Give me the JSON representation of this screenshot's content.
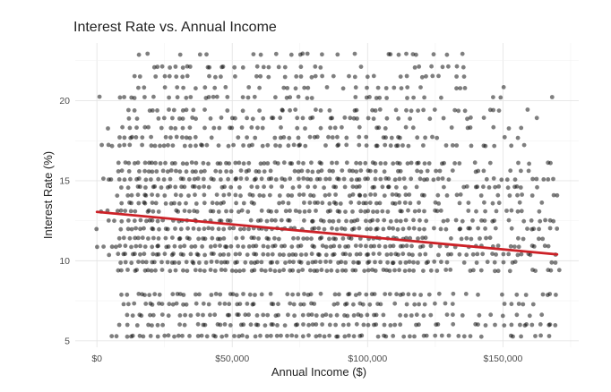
{
  "chart_data": {
    "type": "scatter",
    "title": "Interest Rate vs. Annual Income",
    "xlabel": "Annual Income ($)",
    "ylabel": "Interest Rate (%)",
    "xlim": [
      -8000,
      178000
    ],
    "ylim": [
      4.6,
      23.6
    ],
    "x_ticks": [
      {
        "value": 0,
        "label": "$0"
      },
      {
        "value": 50000,
        "label": "$50,000"
      },
      {
        "value": 100000,
        "label": "$100,000"
      },
      {
        "value": 150000,
        "label": "$150,000"
      }
    ],
    "y_ticks": [
      {
        "value": 5,
        "label": "5"
      },
      {
        "value": 10,
        "label": "10"
      },
      {
        "value": 15,
        "label": "15"
      },
      {
        "value": 20,
        "label": "20"
      }
    ],
    "grid": true,
    "legend": "none",
    "point_color": "#000000",
    "point_opacity": 0.5,
    "trend_color": "#cc2127",
    "trend_line": {
      "x": [
        0,
        170000
      ],
      "y": [
        13.05,
        10.4
      ]
    },
    "rate_levels": [
      {
        "rate": 5.3,
        "x_range": [
          5000,
          170000
        ],
        "density": 0.9
      },
      {
        "rate": 6.0,
        "x_range": [
          8000,
          170000
        ],
        "density": 0.85
      },
      {
        "rate": 6.6,
        "x_range": [
          8000,
          165000
        ],
        "density": 0.75
      },
      {
        "rate": 7.3,
        "x_range": [
          10000,
          165000
        ],
        "density": 0.75
      },
      {
        "rate": 7.9,
        "x_range": [
          2000,
          170000
        ],
        "density": 0.8
      },
      {
        "rate": 9.4,
        "x_range": [
          8000,
          170000
        ],
        "density": 0.95
      },
      {
        "rate": 9.9,
        "x_range": [
          4000,
          170000
        ],
        "density": 0.95
      },
      {
        "rate": 10.4,
        "x_range": [
          2000,
          170000
        ],
        "density": 0.95
      },
      {
        "rate": 10.9,
        "x_range": [
          0,
          170000
        ],
        "density": 0.95
      },
      {
        "rate": 11.4,
        "x_range": [
          8000,
          165000
        ],
        "density": 0.85
      },
      {
        "rate": 12.0,
        "x_range": [
          0,
          170000
        ],
        "density": 0.95
      },
      {
        "rate": 12.5,
        "x_range": [
          5000,
          170000
        ],
        "density": 0.85
      },
      {
        "rate": 13.1,
        "x_range": [
          0,
          170000
        ],
        "density": 0.9
      },
      {
        "rate": 13.6,
        "x_range": [
          6000,
          165000
        ],
        "density": 0.8
      },
      {
        "rate": 14.1,
        "x_range": [
          8000,
          170000
        ],
        "density": 0.85
      },
      {
        "rate": 14.6,
        "x_range": [
          6000,
          165000
        ],
        "density": 0.8
      },
      {
        "rate": 15.1,
        "x_range": [
          0,
          170000
        ],
        "density": 0.9
      },
      {
        "rate": 15.6,
        "x_range": [
          8000,
          160000
        ],
        "density": 0.7
      },
      {
        "rate": 16.1,
        "x_range": [
          8000,
          170000
        ],
        "density": 0.85
      },
      {
        "rate": 17.2,
        "x_range": [
          0,
          165000
        ],
        "density": 0.75
      },
      {
        "rate": 17.7,
        "x_range": [
          8000,
          160000
        ],
        "density": 0.6
      },
      {
        "rate": 18.3,
        "x_range": [
          0,
          160000
        ],
        "density": 0.6
      },
      {
        "rate": 18.9,
        "x_range": [
          10000,
          165000
        ],
        "density": 0.6
      },
      {
        "rate": 19.4,
        "x_range": [
          10000,
          160000
        ],
        "density": 0.55
      },
      {
        "rate": 20.2,
        "x_range": [
          0,
          170000
        ],
        "density": 0.5
      },
      {
        "rate": 20.8,
        "x_range": [
          15000,
          150000
        ],
        "density": 0.45
      },
      {
        "rate": 21.5,
        "x_range": [
          12000,
          140000
        ],
        "density": 0.5
      },
      {
        "rate": 22.1,
        "x_range": [
          15000,
          140000
        ],
        "density": 0.4
      },
      {
        "rate": 22.9,
        "x_range": [
          10000,
          140000
        ],
        "density": 0.3
      }
    ]
  }
}
